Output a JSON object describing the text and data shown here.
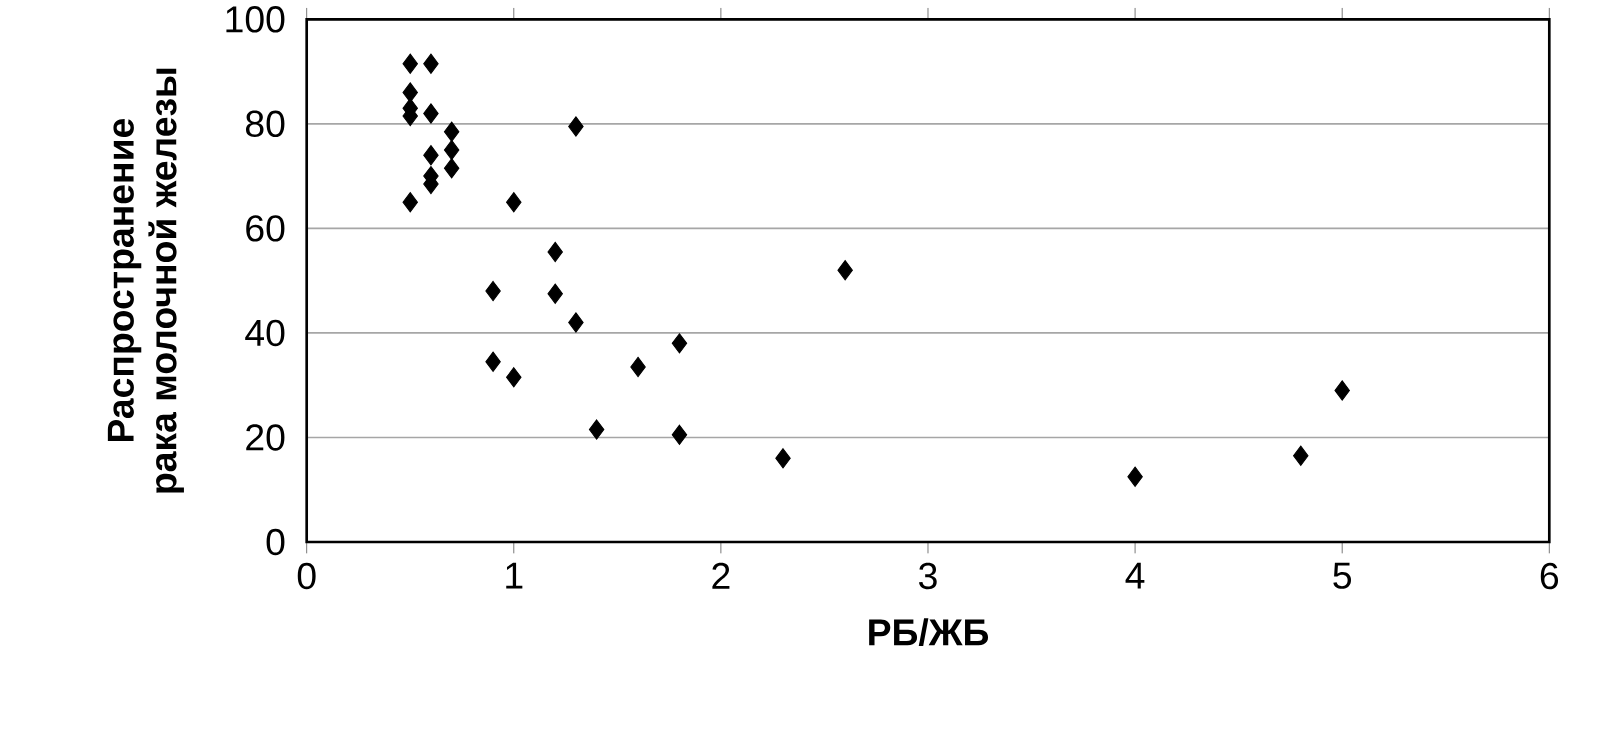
{
  "chart_data": {
    "type": "scatter",
    "xlabel": "РБ/ЖБ",
    "ylabel": "Распространение\nрака молочной железы",
    "x": [
      0.5,
      0.6,
      0.5,
      0.5,
      0.5,
      0.6,
      0.7,
      0.6,
      0.7,
      0.7,
      0.6,
      0.6,
      0.5,
      1.0,
      1.3,
      1.2,
      0.9,
      1.2,
      1.3,
      0.9,
      1.0,
      1.6,
      1.8,
      1.4,
      1.8,
      2.3,
      2.6,
      4.0,
      4.8,
      5.0
    ],
    "values": [
      91.5,
      91.5,
      86,
      83,
      81.5,
      82,
      78.5,
      74,
      75,
      71.5,
      70,
      68.5,
      65,
      65,
      79.5,
      55.5,
      48,
      47.5,
      42,
      34.5,
      31.5,
      33.5,
      38,
      21.5,
      20.5,
      16,
      52,
      12.5,
      16.5,
      29
    ],
    "color": "#000000",
    "marker": "diamond",
    "xlim": [
      0,
      6
    ],
    "ylim": [
      0,
      100
    ],
    "xticks": [
      0,
      1,
      2,
      3,
      4,
      5,
      6
    ],
    "yticks": [
      0,
      20,
      40,
      60,
      80,
      100
    ],
    "grid": "y"
  }
}
